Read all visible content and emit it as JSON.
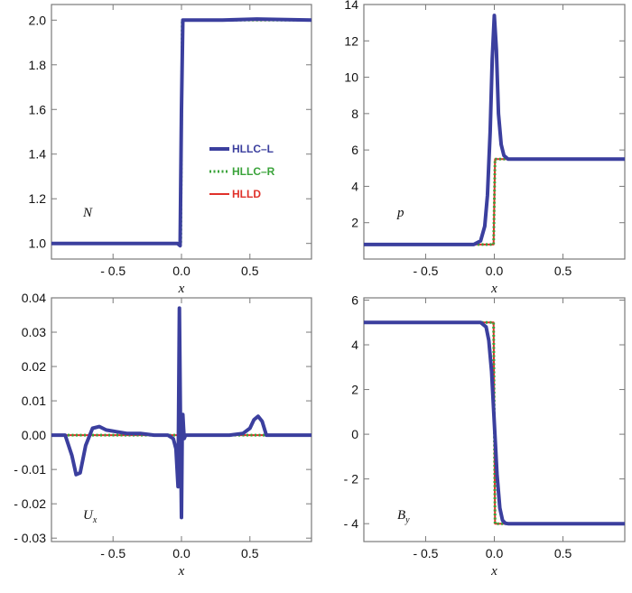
{
  "colors": {
    "hllc_l": "#3b3f9e",
    "hllc_r": "#3aa33a",
    "hlld": "#e0312a",
    "frame": "#7a7a7a"
  },
  "legend": [
    {
      "label": "HLLC–L",
      "color": "#3b3f9e",
      "style": "solid"
    },
    {
      "label": "HLLC–R",
      "color": "#3aa33a",
      "style": "dotted"
    },
    {
      "label": "HLLD",
      "color": "#e0312a",
      "style": "solid"
    }
  ],
  "chart_data": [
    {
      "type": "line",
      "panel_label": "N",
      "panel_label_sub": "",
      "xlabel": "x",
      "xlim": [
        -0.95,
        0.95
      ],
      "ylim": [
        0.93,
        2.07
      ],
      "xticks": [
        -0.5,
        0.0,
        0.5
      ],
      "xtick_labels": [
        "- 0.5",
        "0.0",
        "0.5"
      ],
      "yticks": [
        1.0,
        1.2,
        1.4,
        1.6,
        1.8,
        2.0
      ],
      "ytick_labels": [
        "1.0",
        "1.2",
        "1.4",
        "1.6",
        "1.8",
        "2.0"
      ],
      "series": [
        {
          "name": "HLLC–L",
          "x": [
            -0.95,
            -0.03,
            -0.01,
            0.0,
            0.01,
            0.05,
            0.3,
            0.55,
            0.95
          ],
          "y": [
            1.0,
            1.0,
            0.99,
            1.6,
            2.0,
            2.0,
            2.0,
            2.005,
            2.0
          ]
        },
        {
          "name": "HLLC–R",
          "x": [
            -0.95,
            -0.005,
            0.005,
            0.95
          ],
          "y": [
            1.0,
            1.0,
            2.0,
            2.0
          ]
        },
        {
          "name": "HLLD",
          "x": [
            -0.95,
            -0.005,
            0.005,
            0.95
          ],
          "y": [
            1.0,
            1.0,
            2.0,
            2.0
          ]
        }
      ]
    },
    {
      "type": "line",
      "panel_label": "p",
      "panel_label_sub": "",
      "xlabel": "x",
      "xlim": [
        -0.95,
        0.95
      ],
      "ylim": [
        0.0,
        14.0
      ],
      "xticks": [
        -0.5,
        0.0,
        0.5
      ],
      "xtick_labels": [
        "- 0.5",
        "0.0",
        "0.5"
      ],
      "yticks": [
        2,
        4,
        6,
        8,
        10,
        12,
        14
      ],
      "ytick_labels": [
        "2",
        "4",
        "6",
        "8",
        "10",
        "12",
        "14"
      ],
      "series": [
        {
          "name": "HLLC–L",
          "x": [
            -0.95,
            -0.15,
            -0.1,
            -0.07,
            -0.05,
            -0.03,
            -0.015,
            0.0,
            0.015,
            0.03,
            0.05,
            0.07,
            0.1,
            0.15,
            0.95
          ],
          "y": [
            0.8,
            0.8,
            1.0,
            1.8,
            3.5,
            7.0,
            11.0,
            13.4,
            11.5,
            8.0,
            6.3,
            5.7,
            5.5,
            5.5,
            5.5
          ]
        },
        {
          "name": "HLLC–R",
          "x": [
            -0.95,
            -0.005,
            0.005,
            0.95
          ],
          "y": [
            0.8,
            0.8,
            5.5,
            5.5
          ]
        },
        {
          "name": "HLLD",
          "x": [
            -0.95,
            -0.005,
            0.005,
            0.95
          ],
          "y": [
            0.8,
            0.8,
            5.5,
            5.5
          ]
        }
      ]
    },
    {
      "type": "line",
      "panel_label": "U",
      "panel_label_sub": "x",
      "xlabel": "x",
      "xlim": [
        -0.95,
        0.95
      ],
      "ylim": [
        -0.031,
        0.04
      ],
      "xticks": [
        -0.5,
        0.0,
        0.5
      ],
      "xtick_labels": [
        "- 0.5",
        "0.0",
        "0.5"
      ],
      "yticks": [
        -0.03,
        -0.02,
        -0.01,
        0.0,
        0.01,
        0.02,
        0.03,
        0.04
      ],
      "ytick_labels": [
        "- 0.03",
        "- 0.02",
        "- 0.01",
        "0.00",
        "0.01",
        "0.02",
        "0.03",
        "0.04"
      ],
      "series": [
        {
          "name": "HLLC–L",
          "x": [
            -0.95,
            -0.85,
            -0.8,
            -0.77,
            -0.74,
            -0.7,
            -0.65,
            -0.6,
            -0.55,
            -0.4,
            -0.3,
            -0.2,
            -0.1,
            -0.06,
            -0.04,
            -0.025,
            -0.015,
            -0.005,
            0.0,
            0.005,
            0.01,
            0.015,
            0.02,
            0.03,
            0.05,
            0.1,
            0.2,
            0.35,
            0.45,
            0.5,
            0.53,
            0.56,
            0.59,
            0.62,
            0.95
          ],
          "y": [
            0.0,
            0.0,
            -0.006,
            -0.0115,
            -0.011,
            -0.003,
            0.002,
            0.0025,
            0.0015,
            0.0005,
            0.0005,
            0.0,
            0.0,
            -0.001,
            -0.004,
            -0.015,
            0.037,
            -0.005,
            -0.024,
            0.0,
            0.006,
            0.002,
            -0.001,
            0.0,
            0.0,
            0.0,
            0.0,
            0.0,
            0.0005,
            0.002,
            0.0045,
            0.0055,
            0.004,
            0.0,
            0.0
          ]
        },
        {
          "name": "HLLC–R",
          "x": [
            -0.95,
            0.95
          ],
          "y": [
            0.0,
            0.0
          ]
        },
        {
          "name": "HLLD",
          "x": [
            -0.95,
            0.95
          ],
          "y": [
            0.0,
            0.0
          ]
        }
      ]
    },
    {
      "type": "line",
      "panel_label": "B",
      "panel_label_sub": "y",
      "xlabel": "x",
      "xlim": [
        -0.95,
        0.95
      ],
      "ylim": [
        -4.8,
        6.1
      ],
      "xticks": [
        -0.5,
        0.0,
        0.5
      ],
      "xtick_labels": [
        "- 0.5",
        "0.0",
        "0.5"
      ],
      "yticks": [
        -4,
        -2,
        0,
        2,
        4,
        6
      ],
      "ytick_labels": [
        "- 4",
        "- 2",
        "0",
        "2",
        "4",
        "6"
      ],
      "series": [
        {
          "name": "HLLC–L",
          "x": [
            -0.95,
            -0.1,
            -0.06,
            -0.04,
            -0.02,
            0.0,
            0.02,
            0.04,
            0.06,
            0.08,
            0.1,
            0.95
          ],
          "y": [
            5.0,
            5.0,
            4.8,
            4.2,
            2.8,
            0.5,
            -1.8,
            -3.3,
            -3.85,
            -3.98,
            -4.0,
            -4.0
          ]
        },
        {
          "name": "HLLC–R",
          "x": [
            -0.95,
            -0.005,
            0.005,
            0.95
          ],
          "y": [
            5.0,
            5.0,
            -4.0,
            -4.0
          ]
        },
        {
          "name": "HLLD",
          "x": [
            -0.95,
            -0.005,
            0.005,
            0.95
          ],
          "y": [
            5.0,
            5.0,
            -4.0,
            -4.0
          ]
        }
      ]
    }
  ]
}
